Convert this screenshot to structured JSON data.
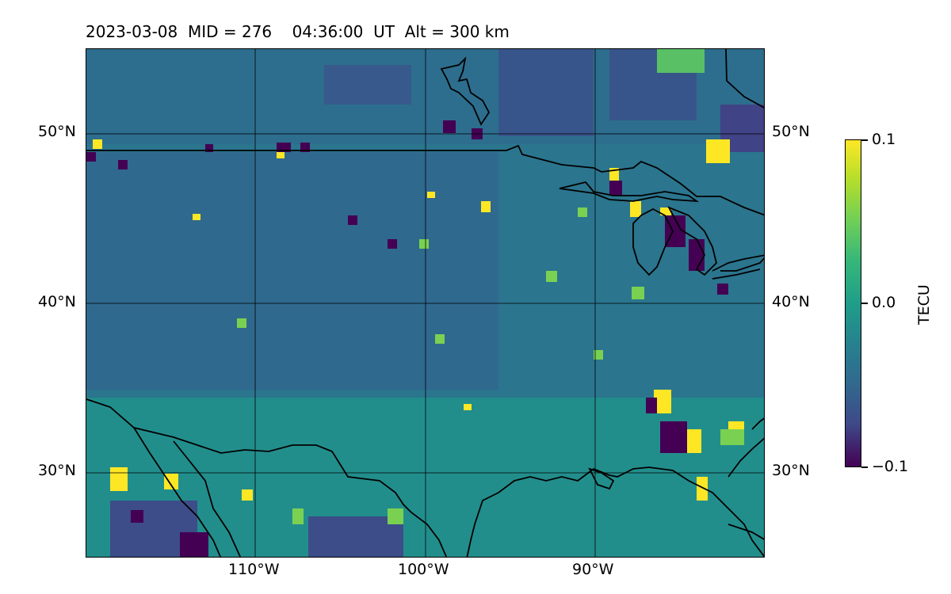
{
  "title": "2023-03-08  MID = 276    04:36:00  UT  Alt = 300 km",
  "map": {
    "lat_labels": [
      "50°N",
      "40°N",
      "30°N"
    ],
    "lon_labels": [
      "110°W",
      "100°W",
      "90°W"
    ],
    "extent": {
      "lon_min": -120,
      "lon_max": -80,
      "lat_min": 25,
      "lat_max": 55
    }
  },
  "colorbar": {
    "label": "TECU",
    "ticks": [
      "0.1",
      "0.0",
      "−0.1"
    ],
    "colormap": "viridis",
    "range": [
      -0.1,
      0.1
    ]
  },
  "colors": {
    "background": "#2b758e",
    "high": "#fde725",
    "low": "#440154"
  }
}
